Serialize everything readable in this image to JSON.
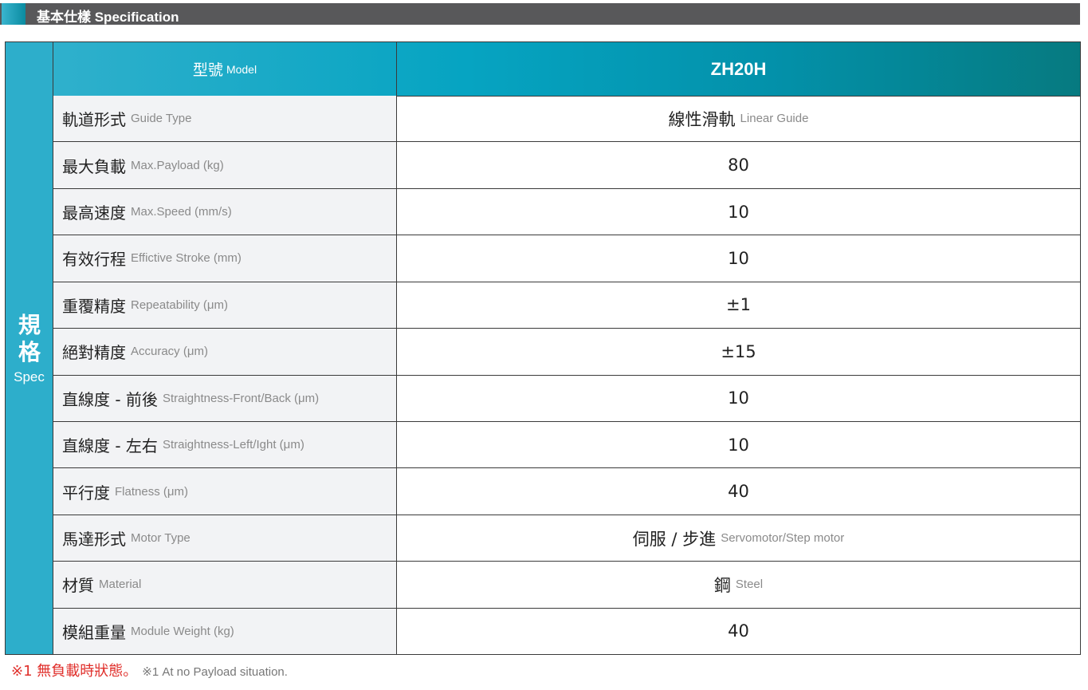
{
  "section_title": "基本仕樣 Specification",
  "spec_label": {
    "zh": "規格",
    "en": "Spec"
  },
  "header": {
    "label_zh": "型號",
    "label_en": "Model",
    "model": "ZH20H"
  },
  "rows": [
    {
      "zh": "軌道形式",
      "en": "Guide Type",
      "value": "線性滑軌",
      "value_en": "Linear Guide"
    },
    {
      "zh": "最大負載",
      "en": "Max.Payload (kg)",
      "value": "80",
      "value_en": ""
    },
    {
      "zh": "最高速度",
      "en": "Max.Speed (mm/s)",
      "value": "10",
      "value_en": ""
    },
    {
      "zh": "有效行程",
      "en": "Effictive Stroke (mm)",
      "value": "10",
      "value_en": ""
    },
    {
      "zh": "重覆精度",
      "en": "Repeatability  (μm)",
      "value": "±1",
      "value_en": ""
    },
    {
      "zh": "絕對精度",
      "en": "Accuracy (μm)",
      "value": "±15",
      "value_en": ""
    },
    {
      "zh": "直線度 - 前後",
      "en": "Straightness-Front/Back  (μm)",
      "value": "10",
      "value_en": ""
    },
    {
      "zh": "直線度 - 左右",
      "en": "Straightness-Left/Ight (μm)",
      "value": "10",
      "value_en": ""
    },
    {
      "zh": "平行度",
      "en": "Flatness (μm)",
      "value": "40",
      "value_en": ""
    },
    {
      "zh": "馬達形式",
      "en": "Motor Type",
      "value": "伺服 / 步進",
      "value_en": "Servomotor/Step motor"
    },
    {
      "zh": "材質",
      "en": "Material",
      "value": "鋼",
      "value_en": "Steel"
    },
    {
      "zh": "模組重量",
      "en": "Module Weight (kg)",
      "value": "40",
      "value_en": ""
    }
  ],
  "footnote": {
    "zh": "※1 無負載時狀態。",
    "en": "※1 At no Payload situation."
  },
  "colors": {
    "accent": "#2daecb",
    "title_bar": "#58585a",
    "note": "#e0302c"
  }
}
